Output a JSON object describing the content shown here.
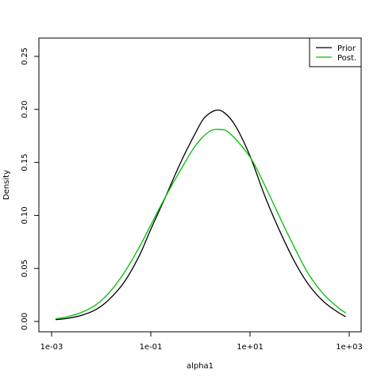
{
  "colors": {
    "prior": "#000000",
    "post": "#00c000",
    "background": "#ffffff"
  },
  "chart_data": {
    "type": "line",
    "title": "",
    "xlabel": "alpha1",
    "ylabel": "Density",
    "xscale": "log10",
    "xlim": [
      0.001,
      1000
    ],
    "ylim": [
      0.0,
      0.27
    ],
    "x_ticks": [
      {
        "value": 0.001,
        "label": "1e-03"
      },
      {
        "value": 0.1,
        "label": "1e-01"
      },
      {
        "value": 10,
        "label": "1e+01"
      },
      {
        "value": 1000,
        "label": "1e+03"
      }
    ],
    "y_ticks": [
      {
        "value": 0.0,
        "label": "0.00"
      },
      {
        "value": 0.05,
        "label": "0.05"
      },
      {
        "value": 0.1,
        "label": "0.10"
      },
      {
        "value": 0.15,
        "label": "0.15"
      },
      {
        "value": 0.2,
        "label": "0.20"
      },
      {
        "value": 0.25,
        "label": "0.25"
      }
    ],
    "grid": false,
    "legend_position": "top-right",
    "series": [
      {
        "name": "Prior",
        "color": "#000000",
        "points": [
          [
            0.0012,
            0.0017
          ],
          [
            0.002,
            0.0028
          ],
          [
            0.004,
            0.0058
          ],
          [
            0.008,
            0.0115
          ],
          [
            0.015,
            0.0215
          ],
          [
            0.03,
            0.038
          ],
          [
            0.06,
            0.063
          ],
          [
            0.1,
            0.087
          ],
          [
            0.2,
            0.118
          ],
          [
            0.4,
            0.15
          ],
          [
            0.8,
            0.178
          ],
          [
            1.2,
            0.192
          ],
          [
            2,
            0.199
          ],
          [
            3,
            0.197
          ],
          [
            5,
            0.185
          ],
          [
            10,
            0.156
          ],
          [
            20,
            0.118
          ],
          [
            40,
            0.085
          ],
          [
            80,
            0.056
          ],
          [
            150,
            0.035
          ],
          [
            300,
            0.019
          ],
          [
            600,
            0.0085
          ],
          [
            850,
            0.0045
          ]
        ]
      },
      {
        "name": "Post.",
        "color": "#00c000",
        "points": [
          [
            0.0012,
            0.0025
          ],
          [
            0.002,
            0.0043
          ],
          [
            0.004,
            0.0085
          ],
          [
            0.008,
            0.016
          ],
          [
            0.015,
            0.028
          ],
          [
            0.03,
            0.047
          ],
          [
            0.06,
            0.071
          ],
          [
            0.1,
            0.091
          ],
          [
            0.2,
            0.118
          ],
          [
            0.4,
            0.143
          ],
          [
            0.8,
            0.166
          ],
          [
            1.5,
            0.179
          ],
          [
            2.5,
            0.181
          ],
          [
            4,
            0.177
          ],
          [
            10,
            0.155
          ],
          [
            20,
            0.128
          ],
          [
            40,
            0.098
          ],
          [
            80,
            0.069
          ],
          [
            150,
            0.045
          ],
          [
            300,
            0.026
          ],
          [
            600,
            0.013
          ],
          [
            850,
            0.008
          ]
        ]
      }
    ]
  }
}
